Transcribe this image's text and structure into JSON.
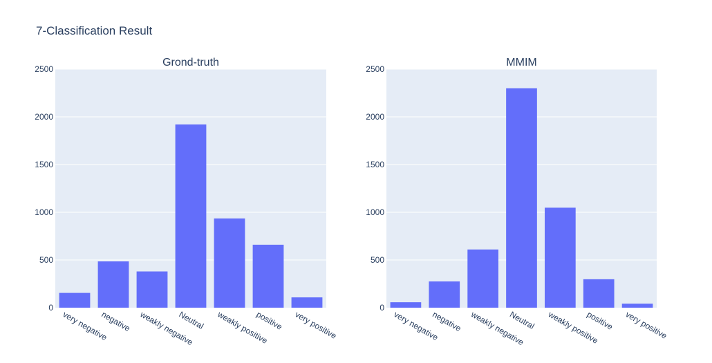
{
  "title": "7-Classification Result",
  "colors": {
    "bar": "#636efa",
    "plot_bg": "#e5ecf6",
    "grid": "#ffffff",
    "text": "#2a3f5f"
  },
  "chart_data": [
    {
      "type": "bar",
      "title": "Grond-truth",
      "categories": [
        "very negative",
        "negative",
        "weakly negative",
        "Neutral",
        "weakly positive",
        "positive",
        "very positive"
      ],
      "values": [
        155,
        485,
        380,
        1920,
        935,
        660,
        108
      ],
      "ylim": [
        0,
        2500
      ],
      "yticks": [
        0,
        500,
        1000,
        1500,
        2000,
        2500
      ],
      "grid": true
    },
    {
      "type": "bar",
      "title": "MMIM",
      "categories": [
        "very negative",
        "negative",
        "weakly negative",
        "Neutral",
        "weakly positive",
        "positive",
        "very positive"
      ],
      "values": [
        57,
        275,
        610,
        2300,
        1048,
        298,
        42
      ],
      "ylim": [
        0,
        2500
      ],
      "yticks": [
        0,
        500,
        1000,
        1500,
        2000,
        2500
      ],
      "grid": true
    }
  ]
}
